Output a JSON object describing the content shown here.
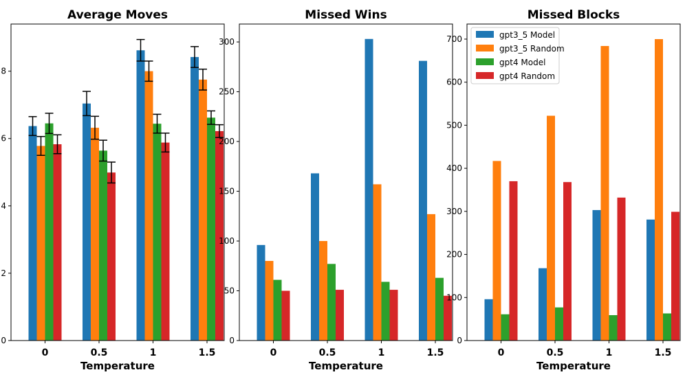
{
  "figure": {
    "categories": [
      "0",
      "0.5",
      "1",
      "1.5"
    ],
    "xlabel": "Temperature",
    "series_names": [
      "gpt3_5 Model",
      "gpt3_5 Random",
      "gpt4 Model",
      "gpt4 Random"
    ],
    "colors": [
      "#1f77b4",
      "#ff7f0e",
      "#2ca02c",
      "#d62728"
    ],
    "error_color": "#000000",
    "legend_location": "top-left of Missed Blocks panel"
  },
  "chart_data": [
    {
      "type": "bar",
      "title": "Average Moves",
      "xlabel": "Temperature",
      "ylabel": "",
      "categories": [
        "0",
        "0.5",
        "1",
        "1.5"
      ],
      "ylim": [
        0,
        9.4
      ],
      "yticks": [
        "0",
        "2",
        "4",
        "6",
        "8"
      ],
      "ytick_values": [
        0,
        2,
        4,
        6,
        8
      ],
      "series": [
        {
          "name": "gpt3_5 Model",
          "values": [
            6.37,
            7.04,
            8.62,
            8.42
          ],
          "errors": [
            0.28,
            0.36,
            0.32,
            0.31
          ]
        },
        {
          "name": "gpt3_5 Random",
          "values": [
            5.78,
            6.32,
            8.0,
            7.75
          ],
          "errors": [
            0.28,
            0.34,
            0.3,
            0.31
          ]
        },
        {
          "name": "gpt4 Model",
          "values": [
            6.45,
            5.64,
            6.44,
            6.62
          ],
          "errors": [
            0.3,
            0.31,
            0.28,
            0.2
          ]
        },
        {
          "name": "gpt4 Random",
          "values": [
            5.83,
            4.99,
            5.88,
            6.22
          ],
          "errors": [
            0.28,
            0.31,
            0.28,
            0.19
          ]
        }
      ]
    },
    {
      "type": "bar",
      "title": "Missed Wins",
      "xlabel": "Temperature",
      "ylabel": "",
      "categories": [
        "0",
        "0.5",
        "1",
        "1.5"
      ],
      "ylim": [
        0,
        318
      ],
      "yticks": [
        "0",
        "50",
        "100",
        "150",
        "200",
        "250",
        "300"
      ],
      "ytick_values": [
        0,
        50,
        100,
        150,
        200,
        250,
        300
      ],
      "series": [
        {
          "name": "gpt3_5 Model",
          "values": [
            96,
            168,
            303,
            281
          ]
        },
        {
          "name": "gpt3_5 Random",
          "values": [
            80,
            100,
            157,
            127
          ]
        },
        {
          "name": "gpt4 Model",
          "values": [
            61,
            77,
            59,
            63
          ]
        },
        {
          "name": "gpt4 Random",
          "values": [
            50,
            51,
            51,
            45
          ]
        }
      ]
    },
    {
      "type": "bar",
      "title": "Missed Blocks",
      "xlabel": "Temperature",
      "ylabel": "",
      "categories": [
        "0",
        "0.5",
        "1",
        "1.5"
      ],
      "ylim": [
        0,
        735
      ],
      "yticks": [
        "0",
        "100",
        "200",
        "300",
        "400",
        "500",
        "600",
        "700"
      ],
      "ytick_values": [
        0,
        100,
        200,
        300,
        400,
        500,
        600,
        700
      ],
      "legend": [
        "gpt3_5 Model",
        "gpt3_5 Random",
        "gpt4 Model",
        "gpt4 Random"
      ],
      "series": [
        {
          "name": "gpt3_5 Model",
          "values": [
            96,
            168,
            303,
            281
          ]
        },
        {
          "name": "gpt3_5 Random",
          "values": [
            417,
            522,
            684,
            700
          ]
        },
        {
          "name": "gpt4 Model",
          "values": [
            61,
            77,
            59,
            63
          ]
        },
        {
          "name": "gpt4 Random",
          "values": [
            370,
            368,
            332,
            299
          ]
        }
      ]
    }
  ]
}
